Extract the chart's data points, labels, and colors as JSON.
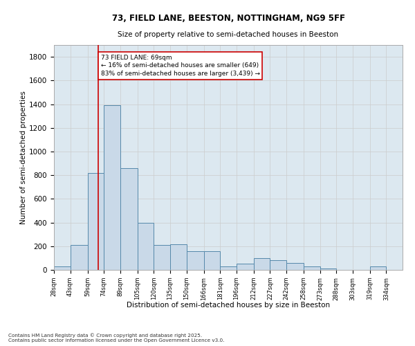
{
  "title1": "73, FIELD LANE, BEESTON, NOTTINGHAM, NG9 5FF",
  "title2": "Size of property relative to semi-detached houses in Beeston",
  "xlabel": "Distribution of semi-detached houses by size in Beeston",
  "ylabel": "Number of semi-detached properties",
  "footnote": "Contains HM Land Registry data © Crown copyright and database right 2025.\nContains public sector information licensed under the Open Government Licence v3.0.",
  "pct_smaller": 16,
  "pct_larger": 83,
  "n_smaller": 649,
  "n_larger": 3439,
  "bin_labels": [
    "28sqm",
    "43sqm",
    "59sqm",
    "74sqm",
    "89sqm",
    "105sqm",
    "120sqm",
    "135sqm",
    "150sqm",
    "166sqm",
    "181sqm",
    "196sqm",
    "212sqm",
    "227sqm",
    "242sqm",
    "258sqm",
    "273sqm",
    "288sqm",
    "303sqm",
    "319sqm",
    "334sqm"
  ],
  "bin_edges": [
    28,
    43,
    59,
    74,
    89,
    105,
    120,
    135,
    150,
    166,
    181,
    196,
    212,
    227,
    242,
    258,
    273,
    288,
    303,
    319,
    334,
    349
  ],
  "bar_heights": [
    30,
    210,
    820,
    1390,
    860,
    400,
    210,
    215,
    160,
    160,
    30,
    50,
    100,
    80,
    60,
    30,
    10,
    0,
    0,
    30,
    0
  ],
  "bar_color": "#c9d9e8",
  "bar_edge_color": "#5588aa",
  "vline_color": "#cc0000",
  "vline_x": 69,
  "annotation_box_color": "#cc0000",
  "ylim": [
    0,
    1900
  ],
  "yticks": [
    0,
    200,
    400,
    600,
    800,
    1000,
    1200,
    1400,
    1600,
    1800
  ],
  "grid_color": "#cccccc",
  "bg_color": "#dce8f0"
}
